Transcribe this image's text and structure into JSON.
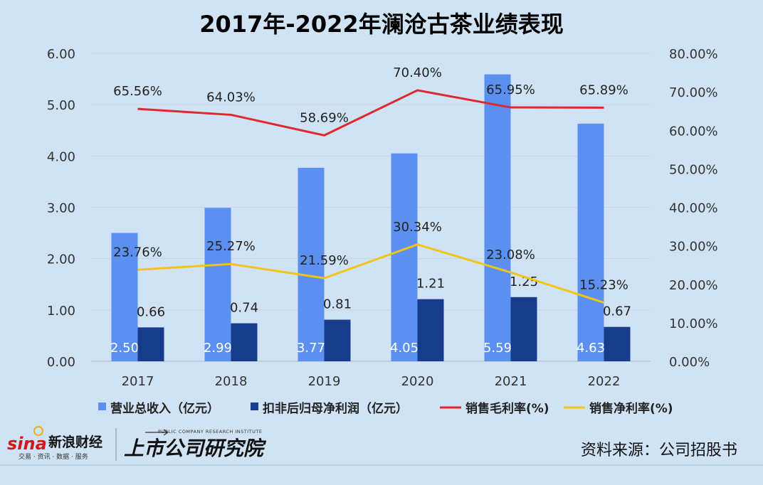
{
  "chart_data": {
    "type": "bar",
    "title": "2017年-2022年澜沧古茶业绩表现",
    "categories": [
      "2017",
      "2018",
      "2019",
      "2020",
      "2021",
      "2022"
    ],
    "y_left": {
      "ticks": [
        "0.00",
        "1.00",
        "2.00",
        "3.00",
        "4.00",
        "5.00",
        "6.00"
      ],
      "ylim": [
        0,
        6
      ]
    },
    "y_right": {
      "ticks": [
        "0.00%",
        "10.00%",
        "20.00%",
        "30.00%",
        "40.00%",
        "50.00%",
        "60.00%",
        "70.00%",
        "80.00%"
      ],
      "ylim": [
        0,
        80
      ]
    },
    "series": [
      {
        "name": "营业总收入（亿元）",
        "kind": "bar",
        "axis": "left",
        "color": "#5b8ff0",
        "values": [
          2.5,
          2.99,
          3.77,
          4.05,
          5.59,
          4.63
        ],
        "labels": [
          "2.50",
          "2.99",
          "3.77",
          "4.05",
          "5.59",
          "4.63"
        ]
      },
      {
        "name": "扣非后归母净利润（亿元）",
        "kind": "bar",
        "axis": "left",
        "color": "#173c8c",
        "values": [
          0.66,
          0.74,
          0.81,
          1.21,
          1.25,
          0.67
        ],
        "labels": [
          "0.66",
          "0.74",
          "0.81",
          "1.21",
          "1.25",
          "0.67"
        ]
      },
      {
        "name": "销售毛利率(%)",
        "kind": "line",
        "axis": "right",
        "color": "#e0282d",
        "values": [
          65.56,
          64.03,
          58.69,
          70.4,
          65.95,
          65.89
        ],
        "labels": [
          "65.56%",
          "64.03%",
          "58.69%",
          "70.40%",
          "65.95%",
          "65.89%"
        ]
      },
      {
        "name": "销售净利率(%)",
        "kind": "line",
        "axis": "right",
        "color": "#f2c418",
        "values": [
          23.76,
          25.27,
          21.59,
          30.34,
          23.08,
          15.23
        ],
        "labels": [
          "23.76%",
          "25.27%",
          "21.59%",
          "30.34%",
          "23.08%",
          "15.23%"
        ]
      }
    ],
    "grid": true,
    "legend_position": "bottom"
  },
  "footer": {
    "sina_brand": "sina",
    "sina_name": "新浪财经",
    "sina_tagline": "交易 · 资讯 · 数据 · 服务",
    "institute_en": "PUBLIC COMPANY RESEARCH INSTITUTE",
    "institute_cn": "上市公司研究院",
    "source": "资料来源：公司招股书"
  }
}
